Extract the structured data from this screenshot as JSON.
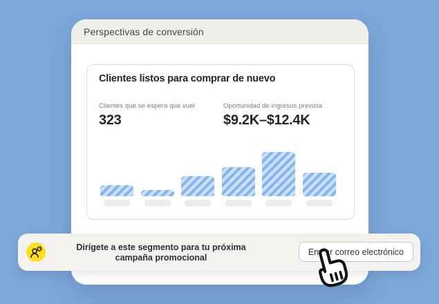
{
  "colors": {
    "background": "#7CA7D9",
    "panel_header_bg": "#F1EFEA",
    "panel_bg": "#FFFFFF",
    "footer_bg": "#F4F2EE",
    "accent_yellow": "#FFE01B",
    "bar_fill": "#C9DEF8",
    "bar_stripe": "#85B3EC",
    "placeholder_pill": "#EFEDEA"
  },
  "panel": {
    "title": "Perspectivas de conversión"
  },
  "insight_card": {
    "title": "Clientes listos para comprar de nuevo",
    "stats": [
      {
        "label": "Clientes que se espera que vuel",
        "value": "323"
      },
      {
        "label": "Oportunidad de ingresos prevista",
        "value": "$9.2K–$12.4K"
      }
    ]
  },
  "chart_data": {
    "type": "bar",
    "title": "",
    "xlabel": "",
    "ylabel": "",
    "categories": [
      "",
      "",
      "",
      "",
      "",
      ""
    ],
    "values": [
      16,
      9,
      29,
      42,
      64,
      34
    ],
    "ylim": [
      0,
      70
    ],
    "grid": false,
    "x_tick_labels": "hidden (gray placeholder pills)",
    "legend": "none",
    "bar_fill": "#C9DEF8",
    "bar_stripe": "#85B3EC",
    "pattern": "diagonal-stripes-45deg"
  },
  "footer": {
    "icon": "audience-segment-icon",
    "message_lines": [
      "Dirígete a este segmento para tu próxima",
      "campaña promocional"
    ],
    "button_label": "Enviar correo electrónico",
    "cursor": "hand-pointer"
  }
}
